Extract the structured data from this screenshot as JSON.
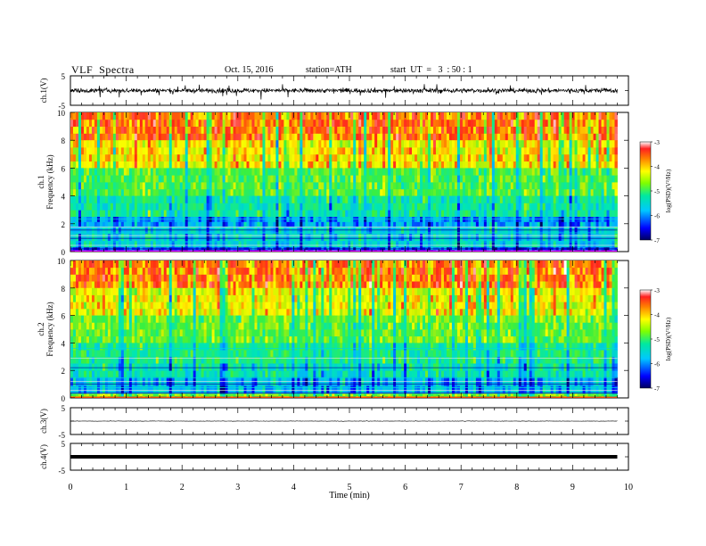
{
  "header": {
    "title": "VLF  Spectra",
    "date": "Oct. 15, 2016",
    "station": "station=ATH",
    "start": "start  UT  =   3  : 50 : 1"
  },
  "chart_data": [
    {
      "type": "line",
      "panel": "ch1",
      "ylabel": "ch.1(V)",
      "yticks": [
        "5",
        "-5"
      ],
      "ylim": [
        -5,
        5
      ],
      "xlim": [
        0,
        10
      ],
      "style": "dense noisy waveform around 0 V, amplitude about ±1.5 V",
      "color": "#000000"
    },
    {
      "type": "heatmap",
      "panel": "ch1-spectrogram",
      "ylabel": "ch.1\nFrequency (kHz)",
      "ylabel_line1": "ch.1",
      "ylabel_line2": "Frequency (kHz)",
      "yticks": [
        "0",
        "2",
        "4",
        "6",
        "8",
        "10"
      ],
      "ylim": [
        0,
        10
      ],
      "xlim": [
        0,
        9.8
      ],
      "colorbar": {
        "label": "log(PSD)(V²/Hz)",
        "ticks": [
          "-3",
          "-4",
          "-5",
          "-6",
          "-7"
        ],
        "range": [
          -7,
          -3
        ]
      },
      "bands": [
        {
          "f": [
            8,
            10
          ],
          "level": -3.9
        },
        {
          "f": [
            6,
            8
          ],
          "level": -4.3
        },
        {
          "f": [
            4,
            6
          ],
          "level": -5.0
        },
        {
          "f": [
            2.5,
            4
          ],
          "level": -5.4
        },
        {
          "f": [
            1.8,
            2.5
          ],
          "level": -6.0
        },
        {
          "f": [
            0.3,
            1.8
          ],
          "level": -5.7
        },
        {
          "f": [
            0,
            0.3
          ],
          "level": -6.4
        }
      ]
    },
    {
      "type": "heatmap",
      "panel": "ch2-spectrogram",
      "ylabel": "ch.2\nFrequency (kHz)",
      "ylabel_line1": "ch.2",
      "ylabel_line2": "Frequency (kHz)",
      "yticks": [
        "0",
        "2",
        "4",
        "6",
        "8",
        "10"
      ],
      "ylim": [
        0,
        10
      ],
      "xlim": [
        0,
        9.8
      ],
      "colorbar": {
        "label": "log(PSD)(V²/Hz)",
        "ticks": [
          "-3",
          "-4",
          "-5",
          "-6",
          "-7"
        ],
        "range": [
          -7,
          -3
        ]
      },
      "bands": [
        {
          "f": [
            8,
            10
          ],
          "level": -3.9
        },
        {
          "f": [
            6,
            8
          ],
          "level": -4.4
        },
        {
          "f": [
            4,
            6
          ],
          "level": -4.9
        },
        {
          "f": [
            2.5,
            4
          ],
          "level": -5.3
        },
        {
          "f": [
            1.5,
            2.5
          ],
          "level": -5.5
        },
        {
          "f": [
            0.3,
            1.5
          ],
          "level": -5.9
        },
        {
          "f": [
            0,
            0.3
          ],
          "level": -4.8
        }
      ]
    },
    {
      "type": "line",
      "panel": "ch3",
      "ylabel": "ch.3(V)",
      "yticks": [
        "5",
        "-5"
      ],
      "ylim": [
        -5,
        5
      ],
      "xlim": [
        0,
        10
      ],
      "style": "flat trace near 0 V with tiny noise",
      "color": "#000000"
    },
    {
      "type": "line",
      "panel": "ch4",
      "ylabel": "ch.4(V)",
      "yticks": [
        "5",
        "-5"
      ],
      "ylim": [
        -5,
        5
      ],
      "xlim": [
        0,
        10
      ],
      "style": "thick flat trace near 0 V",
      "color": "#000000"
    }
  ],
  "xaxis": {
    "label": "Time  (min)",
    "ticks": [
      "0",
      "1",
      "2",
      "3",
      "4",
      "5",
      "6",
      "7",
      "8",
      "9",
      "10"
    ]
  }
}
